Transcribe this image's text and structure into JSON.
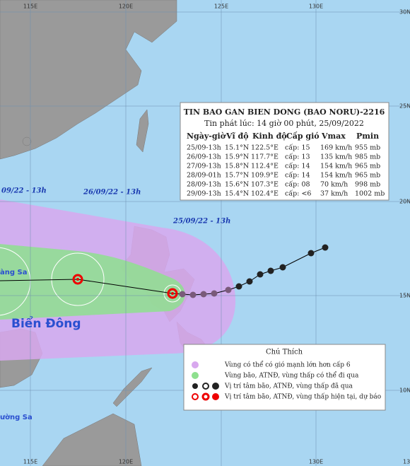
{
  "map": {
    "lon_labels_top": [
      "115E",
      "120E",
      "125E",
      "130E"
    ],
    "lon_labels_bottom": [
      "115E",
      "120E",
      "130E",
      "13"
    ],
    "lat_labels": [
      "30N",
      "25N",
      "20N",
      "15N",
      "10N"
    ]
  },
  "info_box": {
    "title": "TIN BAO GAN BIEN DONG (BAO NORU)-2216",
    "issued": "Tin phát lúc: 14 giờ 00 phút, 25/09/2022",
    "headers": [
      "Ngày-giờ",
      "Vĩ độ",
      "Kinh độ",
      "Cấp gió",
      "Vmax",
      "Pmin"
    ],
    "rows": [
      [
        "25/09-13h",
        "15.1°N",
        "122.5°E",
        "cấp: 15",
        "169 km/h",
        "955 mb"
      ],
      [
        "26/09-13h",
        "15.9°N",
        "117.7°E",
        "cấp: 13",
        "135 km/h",
        "985 mb"
      ],
      [
        "27/09-13h",
        "15.8°N",
        "112.4°E",
        "cấp: 14",
        "154 km/h",
        "965 mb"
      ],
      [
        "28/09-01h",
        "15.7°N",
        "109.9°E",
        "cấp: 14",
        "154 km/h",
        "965 mb"
      ],
      [
        "28/09-13h",
        "15.6°N",
        "107.3°E",
        "cấp: 08",
        "70 km/h",
        "998 mb"
      ],
      [
        "29/09-13h",
        "15.4°N",
        "102.4°E",
        "cấp: <6",
        "37 km/h",
        "1002 mb"
      ]
    ]
  },
  "track_labels": [
    "09/22 - 13h",
    "26/09/22 - 13h",
    "25/09/22 - 13h"
  ],
  "place_labels": [
    "Biển Đông",
    "àng Sa",
    "ường Sa"
  ],
  "legend": {
    "title": "Chú Thích",
    "items": [
      "Vùng có thể có gió mạnh lớn hơn cấp 6",
      "Vùng bão, ATNĐ, vùng thấp có thể đi qua",
      "Vị trí tâm bão, ATNĐ, vùng thấp đã qua",
      "Vị trí tâm bão, ATNĐ, vùng thấp hiện tại, dự báo"
    ]
  }
}
